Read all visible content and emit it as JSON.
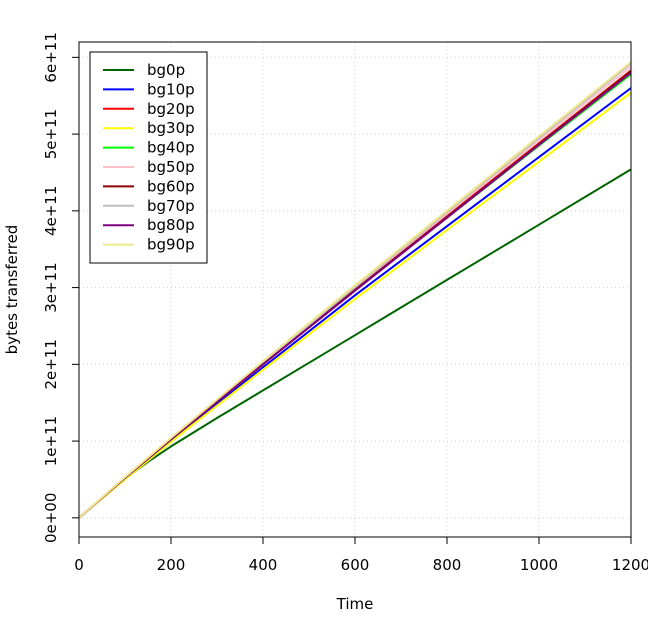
{
  "chart_data": {
    "type": "line",
    "title": "",
    "xlabel": "Time",
    "ylabel": "bytes transferred",
    "xlim": [
      0,
      1200
    ],
    "ylim": [
      -25000000000.0,
      620000000000.0
    ],
    "x_ticks": [
      0,
      200,
      400,
      600,
      800,
      1000,
      1200
    ],
    "x_tick_labels": [
      "0",
      "200",
      "400",
      "600",
      "800",
      "1000",
      "1200"
    ],
    "y_ticks": [
      0,
      100000000000.0,
      200000000000.0,
      300000000000.0,
      400000000000.0,
      500000000000.0,
      600000000000.0
    ],
    "y_tick_labels": [
      "0e+00",
      "1e+11",
      "2e+11",
      "3e+11",
      "4e+11",
      "5e+11",
      "6e+11"
    ],
    "grid": true,
    "legend_position": "top-left",
    "series": [
      {
        "name": "bg0p",
        "color": "#006400",
        "x": [
          0,
          50,
          100,
          150,
          200,
          300,
          400,
          500,
          600,
          700,
          800,
          900,
          1000,
          1100,
          1200
        ],
        "y": [
          0,
          26000000000.0,
          51000000000.0,
          73000000000.0,
          93000000000.0,
          130000000000.0,
          166000000000.0,
          202000000000.0,
          238000000000.0,
          274000000000.0,
          310000000000.0,
          346000000000.0,
          382000000000.0,
          418000000000.0,
          454000000000.0
        ]
      },
      {
        "name": "bg10p",
        "color": "#0000ff",
        "x": [
          0,
          100,
          200,
          400,
          600,
          800,
          1000,
          1200
        ],
        "y": [
          0,
          51000000000.0,
          100000000000.0,
          196000000000.0,
          290000000000.0,
          380000000000.0,
          470000000000.0,
          560000000000.0
        ]
      },
      {
        "name": "bg20p",
        "color": "#ff0000",
        "x": [
          0,
          100,
          200,
          400,
          600,
          800,
          1000,
          1200
        ],
        "y": [
          0,
          52000000000.0,
          102000000000.0,
          200000000000.0,
          298000000000.0,
          393000000000.0,
          488000000000.0,
          583000000000.0
        ]
      },
      {
        "name": "bg30p",
        "color": "#ffff00",
        "x": [
          0,
          100,
          200,
          400,
          600,
          800,
          1000,
          1200
        ],
        "y": [
          0,
          50000000000.0,
          99000000000.0,
          193000000000.0,
          285000000000.0,
          375000000000.0,
          464000000000.0,
          554000000000.0
        ]
      },
      {
        "name": "bg40p",
        "color": "#00ff00",
        "x": [
          0,
          100,
          200,
          400,
          600,
          800,
          1000,
          1200
        ],
        "y": [
          0,
          52000000000.0,
          102000000000.0,
          200000000000.0,
          297000000000.0,
          391000000000.0,
          485000000000.0,
          578000000000.0
        ]
      },
      {
        "name": "bg50p",
        "color": "#ffc0cb",
        "x": [
          0,
          100,
          200,
          400,
          600,
          800,
          1000,
          1200
        ],
        "y": [
          0,
          52000000000.0,
          103000000000.0,
          202000000000.0,
          300000000000.0,
          396000000000.0,
          492000000000.0,
          588000000000.0
        ]
      },
      {
        "name": "bg60p",
        "color": "#8b0000",
        "x": [
          0,
          100,
          200,
          400,
          600,
          800,
          1000,
          1200
        ],
        "y": [
          0,
          52000000000.0,
          102000000000.0,
          200000000000.0,
          297000000000.0,
          392000000000.0,
          487000000000.0,
          582000000000.0
        ]
      },
      {
        "name": "bg70p",
        "color": "#bebebe",
        "x": [
          0,
          100,
          200,
          400,
          600,
          800,
          1000,
          1200
        ],
        "y": [
          0,
          52000000000.0,
          103000000000.0,
          202000000000.0,
          301000000000.0,
          398000000000.0,
          495000000000.0,
          592000000000.0
        ]
      },
      {
        "name": "bg80p",
        "color": "#800080",
        "x": [
          0,
          100,
          200,
          400,
          600,
          800,
          1000,
          1200
        ],
        "y": [
          0,
          52000000000.0,
          102000000000.0,
          200000000000.0,
          296000000000.0,
          391000000000.0,
          486000000000.0,
          580000000000.0
        ]
      },
      {
        "name": "bg90p",
        "color": "#f0e68c",
        "x": [
          0,
          100,
          200,
          400,
          600,
          800,
          1000,
          1200
        ],
        "y": [
          0,
          53000000000.0,
          104000000000.0,
          204000000000.0,
          303000000000.0,
          400000000000.0,
          497000000000.0,
          594000000000.0
        ]
      }
    ]
  }
}
